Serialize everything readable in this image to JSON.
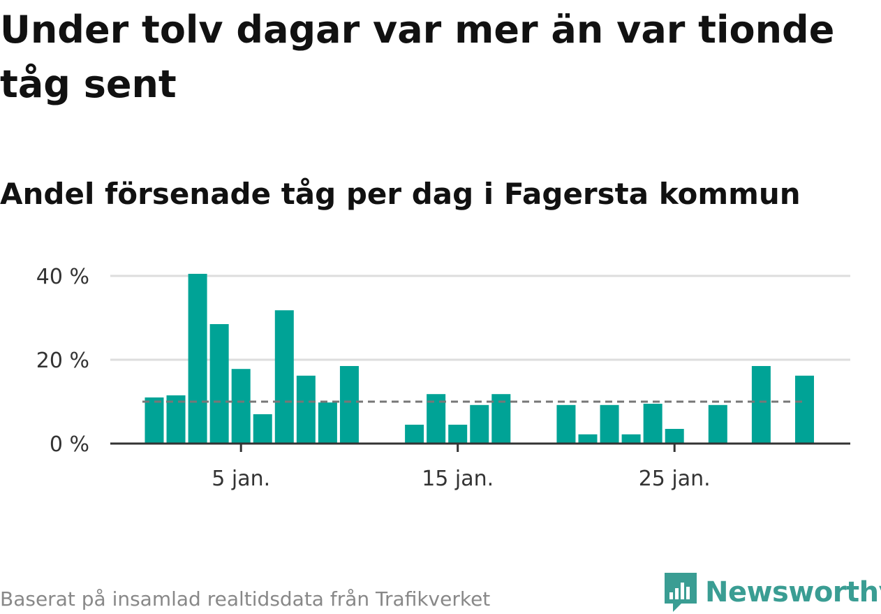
{
  "title": "Under tolv dagar var mer än var tionde tåg sent",
  "subtitle": "Andel försenade tåg per dag i Fagersta kommun",
  "source": "Baserat på insamlad realtidsdata från Trafikverket",
  "brand": {
    "name": "Newsworthy",
    "color": "#3a9d93",
    "icon": "bar-chart-speech-bubble-icon"
  },
  "colors": {
    "bar": "#00a396",
    "reference": "#777777",
    "grid": "#dddddd",
    "axis": "#333333"
  },
  "chart_data": {
    "type": "bar",
    "x": [
      1,
      2,
      3,
      4,
      5,
      6,
      7,
      8,
      9,
      10,
      11,
      12,
      13,
      14,
      15,
      16,
      17,
      18,
      19,
      20,
      21,
      22,
      23,
      24,
      25,
      26,
      27,
      28,
      29,
      30,
      31
    ],
    "values": [
      11,
      11.5,
      40.5,
      28.5,
      17.8,
      7,
      31.8,
      16.2,
      9.8,
      18.5,
      0,
      0,
      4.5,
      11.8,
      4.5,
      9.2,
      11.8,
      0,
      0,
      9.2,
      2.2,
      9.2,
      2.2,
      9.5,
      3.5,
      0,
      9.2,
      0,
      18.5,
      0,
      16.2
    ],
    "reference_line": 10,
    "ylim": [
      0,
      40
    ],
    "y_ticks": [
      {
        "value": 0,
        "label": "0 %"
      },
      {
        "value": 20,
        "label": "20 %"
      },
      {
        "value": 40,
        "label": "40 %"
      }
    ],
    "x_ticks": [
      {
        "value": 5,
        "label": "5 jan."
      },
      {
        "value": 15,
        "label": "15 jan."
      },
      {
        "value": 25,
        "label": "25 jan."
      }
    ],
    "xlabel": "",
    "ylabel": "",
    "grid": true
  }
}
